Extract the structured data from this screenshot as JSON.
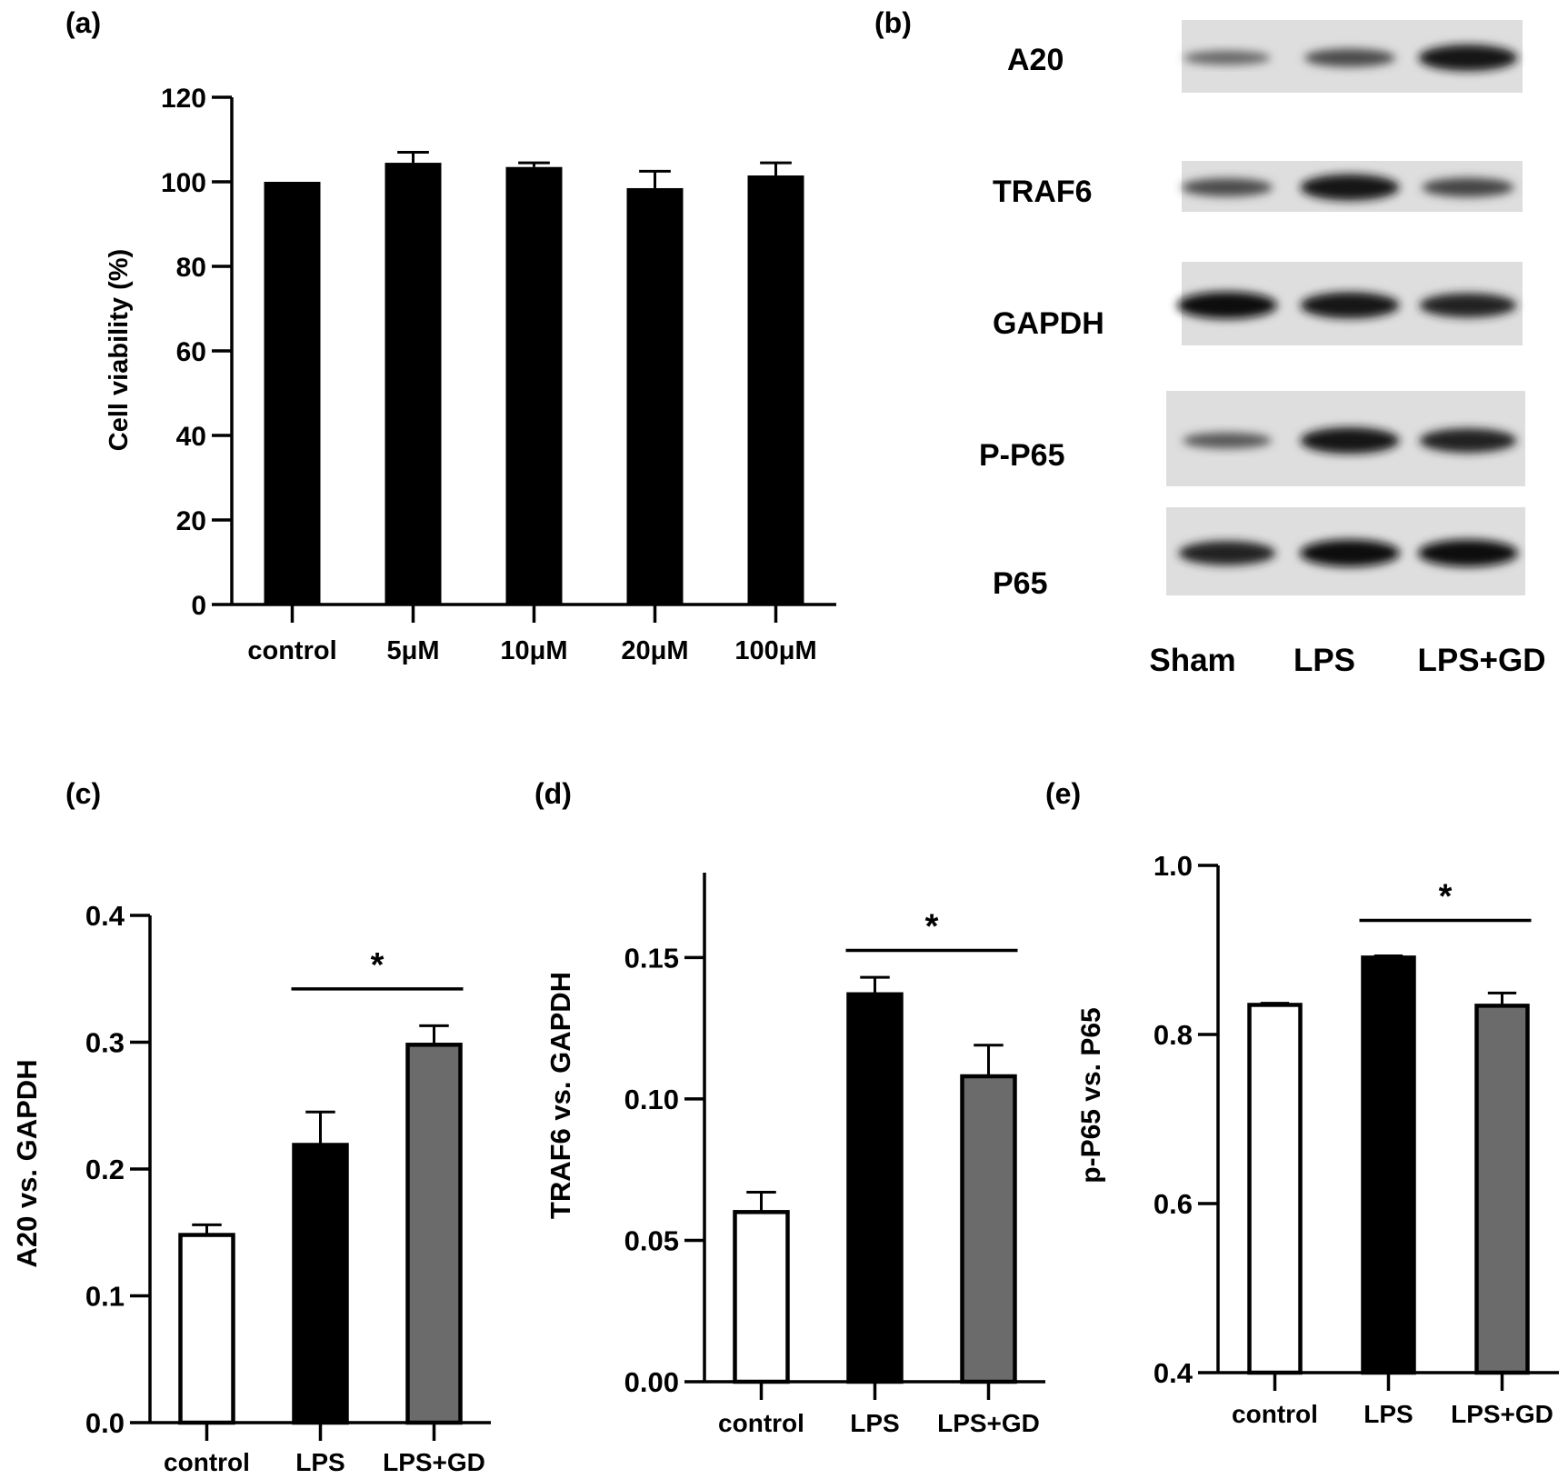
{
  "panel_labels": [
    "(a)",
    "(b)",
    "(c)",
    "(d)",
    "(e)"
  ],
  "colors": {
    "control": "#ffffff",
    "LPS": "#000000",
    "LPS+GD": "#6b6b6b",
    "viability_bars": "#000000",
    "axis": "#000000"
  },
  "blot": {
    "rows": [
      "A20",
      "TRAF6",
      "GAPDH",
      "P-P65",
      "P65"
    ],
    "lanes": [
      "Sham",
      "LPS",
      "LPS+GD"
    ],
    "relative_intensity": [
      [
        0.35,
        0.55,
        0.95
      ],
      [
        0.55,
        0.95,
        0.6
      ],
      [
        1.0,
        0.95,
        0.85
      ],
      [
        0.45,
        0.95,
        0.85
      ],
      [
        0.85,
        1.0,
        1.0
      ]
    ]
  },
  "chart_data": [
    {
      "panel": "(a)",
      "type": "bar",
      "categories": [
        "control",
        "5μM",
        "10μM",
        "20μM",
        "100μM"
      ],
      "series": [
        {
          "values": [
            100,
            104.5,
            103.5,
            98.5,
            101.5
          ],
          "errors": [
            0,
            2.5,
            1.0,
            4.0,
            3.0
          ]
        }
      ],
      "ylabel": "Cell viability (%)",
      "xlabel": "",
      "ylim": [
        0,
        120
      ],
      "yticks": [
        0,
        20,
        40,
        60,
        80,
        100,
        120
      ],
      "ytick_labels": [
        "0",
        "20",
        "40",
        "60",
        "80",
        "100",
        "120"
      ],
      "significance": []
    },
    {
      "panel": "(c)",
      "type": "bar",
      "categories": [
        "control",
        "LPS",
        "LPS+GD"
      ],
      "series": [
        {
          "values": [
            0.148,
            0.219,
            0.298
          ],
          "errors": [
            0.008,
            0.026,
            0.015
          ]
        }
      ],
      "ylabel": "A20 vs. GAPDH",
      "xlabel": "",
      "ylim": [
        0,
        0.4
      ],
      "yticks": [
        0,
        0.1,
        0.2,
        0.3,
        0.4
      ],
      "ytick_labels": [
        "0.0",
        "0.1",
        "0.2",
        "0.3",
        "0.4"
      ],
      "significance": [
        {
          "from": 1,
          "to": 2,
          "y": 0.342,
          "label": "*"
        }
      ]
    },
    {
      "panel": "(d)",
      "type": "bar",
      "categories": [
        "control",
        "LPS",
        "LPS+GD"
      ],
      "series": [
        {
          "values": [
            0.06,
            0.137,
            0.108
          ],
          "errors": [
            0.007,
            0.006,
            0.011
          ]
        }
      ],
      "ylabel": "TRAF6 vs. GAPDH",
      "xlabel": "",
      "ylim": [
        0,
        0.18
      ],
      "yticks": [
        0,
        0.05,
        0.1,
        0.15
      ],
      "ytick_labels": [
        "0.00",
        "0.05",
        "0.10",
        "0.15"
      ],
      "significance": [
        {
          "from": 1,
          "to": 2,
          "y": 0.1525,
          "label": "*"
        }
      ]
    },
    {
      "panel": "(e)",
      "type": "bar",
      "categories": [
        "control",
        "LPS",
        "LPS+GD"
      ],
      "series": [
        {
          "values": [
            0.835,
            0.891,
            0.834
          ],
          "errors": [
            0.002,
            0.002,
            0.015
          ]
        }
      ],
      "ylabel": "p-P65 vs. P65",
      "xlabel": "",
      "ylim": [
        0.4,
        1.0
      ],
      "yticks": [
        0.4,
        0.6,
        0.8,
        1.0
      ],
      "ytick_labels": [
        "0.4",
        "0.6",
        "0.8",
        "1.0"
      ],
      "significance": [
        {
          "from": 1,
          "to": 2,
          "y": 0.935,
          "label": "*"
        }
      ]
    }
  ]
}
